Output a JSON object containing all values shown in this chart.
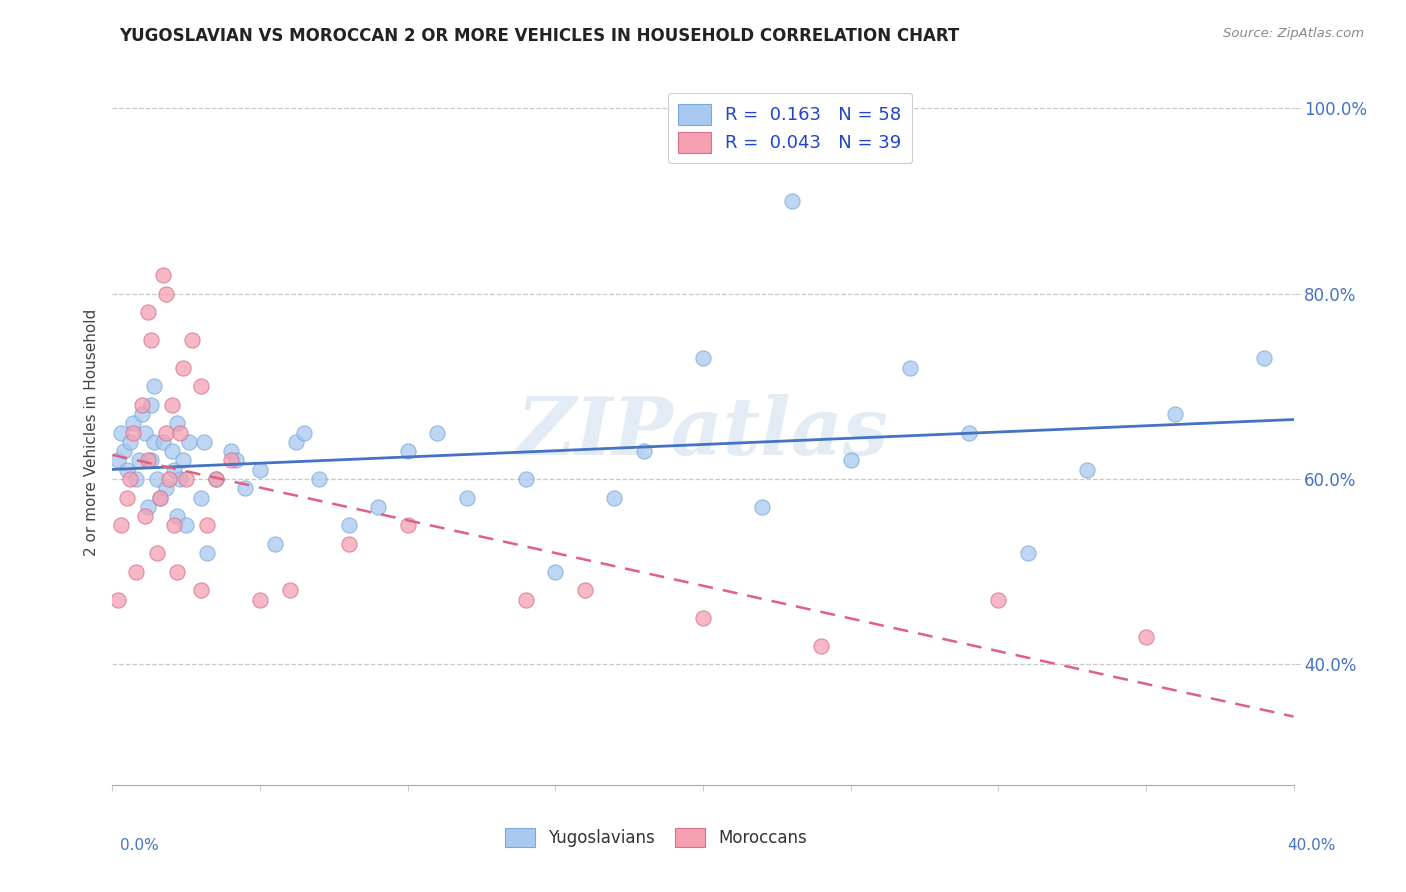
{
  "title": "YUGOSLAVIAN VS MOROCCAN 2 OR MORE VEHICLES IN HOUSEHOLD CORRELATION CHART",
  "source": "Source: ZipAtlas.com",
  "ylabel": "2 or more Vehicles in Household",
  "xlim": [
    0.0,
    40.0
  ],
  "ylim": [
    27.0,
    103.0
  ],
  "yticks": [
    40.0,
    60.0,
    80.0,
    100.0
  ],
  "legend_R1": "R =  0.163",
  "legend_N1": "N = 58",
  "legend_R2": "R =  0.043",
  "legend_N2": "N = 39",
  "series1_color": "#a8c8f0",
  "series2_color": "#f4a0b0",
  "line1_color": "#4472c4",
  "line2_color": "#e06080",
  "background_color": "#ffffff",
  "watermark": "ZIPatlas",
  "yug_x": [
    0.2,
    0.3,
    0.4,
    0.5,
    0.6,
    0.7,
    0.8,
    0.9,
    1.0,
    1.1,
    1.2,
    1.3,
    1.4,
    1.5,
    1.6,
    1.7,
    1.8,
    2.0,
    2.1,
    2.2,
    2.3,
    2.4,
    2.5,
    2.6,
    3.0,
    3.2,
    3.5,
    4.0,
    4.5,
    5.0,
    5.5,
    6.2,
    7.0,
    8.0,
    9.0,
    10.0,
    11.0,
    12.0,
    14.0,
    15.0,
    17.0,
    18.0,
    20.0,
    22.0,
    23.0,
    25.0,
    27.0,
    29.0,
    31.0,
    33.0,
    36.0,
    39.0,
    1.3,
    1.4,
    2.2,
    3.1,
    4.2,
    6.5
  ],
  "yug_y": [
    62,
    65,
    63,
    61,
    64,
    66,
    60,
    62,
    67,
    65,
    57,
    62,
    64,
    60,
    58,
    64,
    59,
    63,
    61,
    56,
    60,
    62,
    55,
    64,
    58,
    52,
    60,
    63,
    59,
    61,
    53,
    64,
    60,
    55,
    57,
    63,
    65,
    58,
    60,
    50,
    58,
    63,
    73,
    57,
    90,
    62,
    72,
    65,
    52,
    61,
    67,
    73,
    68,
    70,
    66,
    64,
    62,
    65
  ],
  "mor_x": [
    0.2,
    0.3,
    0.5,
    0.6,
    0.7,
    0.8,
    1.0,
    1.1,
    1.2,
    1.3,
    1.5,
    1.6,
    1.7,
    1.8,
    1.9,
    2.0,
    2.1,
    2.2,
    2.3,
    2.5,
    2.7,
    3.0,
    3.2,
    3.5,
    4.0,
    5.0,
    6.0,
    8.0,
    10.0,
    14.0,
    16.0,
    20.0,
    24.0,
    30.0,
    35.0,
    1.2,
    1.8,
    2.4,
    3.0
  ],
  "mor_y": [
    47,
    55,
    58,
    60,
    65,
    50,
    68,
    56,
    62,
    75,
    52,
    58,
    82,
    65,
    60,
    68,
    55,
    50,
    65,
    60,
    75,
    48,
    55,
    60,
    62,
    47,
    48,
    53,
    55,
    47,
    48,
    45,
    42,
    47,
    43,
    78,
    80,
    72,
    70
  ]
}
